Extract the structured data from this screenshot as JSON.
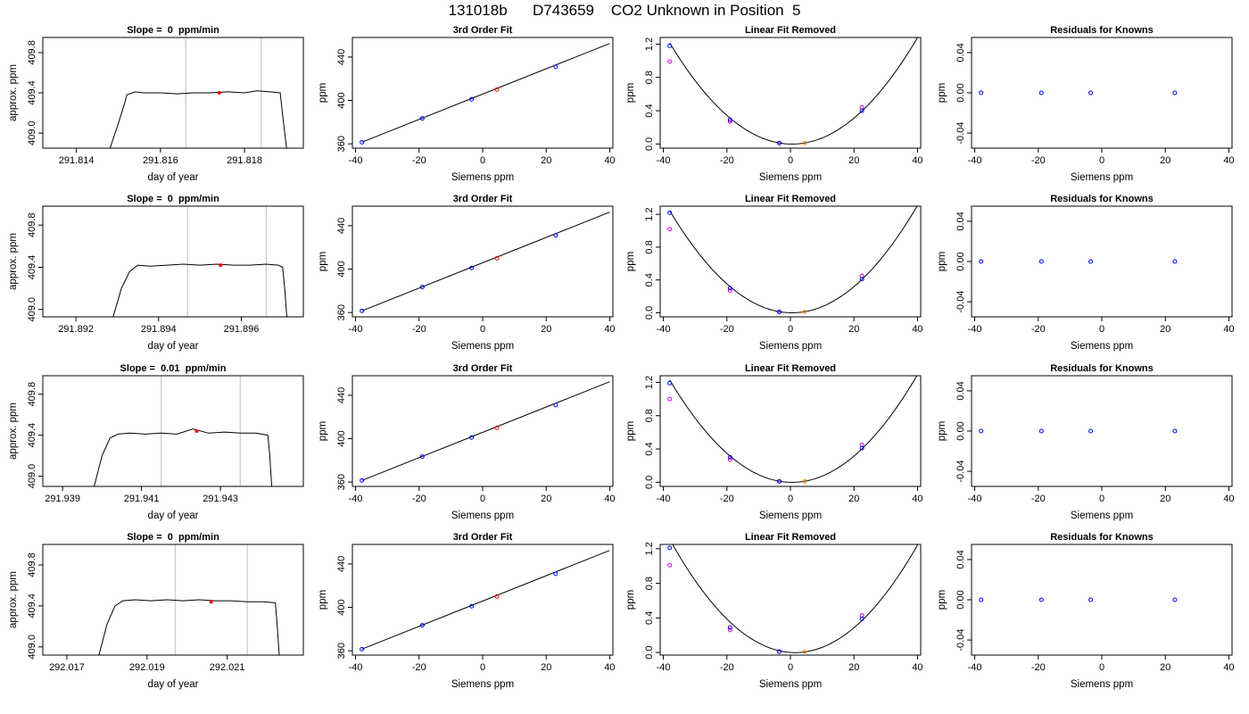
{
  "title": "131018b      D743659    CO2 Unknown in Position  5",
  "colors": {
    "frame": "#000000",
    "curve": "#000000",
    "vline": "#bebebe",
    "known_point": "#0000ff",
    "unknown_point": "#ff0000",
    "unknown_point_lfr": "#ff8c00",
    "poly_known_point": "#cc00ff"
  },
  "chart_data": [
    {
      "panel": "timeseries",
      "row": 1,
      "type": "line",
      "title": "Slope =  0  ppm/min",
      "xlabel": "day of year",
      "ylabel": "approx. ppm",
      "xlim": [
        291.8132,
        291.8194
      ],
      "ylim": [
        408.85,
        409.95
      ],
      "xticks": [
        291.814,
        291.816,
        291.818
      ],
      "xtick_labels": [
        "291.814",
        "291.816",
        "291.818"
      ],
      "yticks": [
        409.0,
        409.4,
        409.8
      ],
      "ytick_labels": [
        "409.0",
        "409.4",
        "409.8"
      ],
      "vlines": [
        291.8166,
        291.8184
      ],
      "series": [
        {
          "x": [
            291.8148,
            291.815,
            291.81515,
            291.8152,
            291.8154,
            291.8156,
            291.816,
            291.8164,
            291.8168,
            291.8172,
            291.8176,
            291.818,
            291.8183,
            291.8186,
            291.81885,
            291.8189,
            291.819
          ],
          "y": [
            408.85,
            409.1,
            409.3,
            409.38,
            409.41,
            409.4,
            409.4,
            409.39,
            409.4,
            409.4,
            409.41,
            409.4,
            409.42,
            409.41,
            409.4,
            409.2,
            408.85
          ]
        }
      ],
      "highlight": {
        "x": 291.8174,
        "y": 409.4
      }
    },
    {
      "panel": "fit",
      "row": 1,
      "type": "line",
      "title": "3rd Order Fit",
      "xlabel": "Siemens ppm",
      "ylabel": "ppm",
      "xlim": [
        -41,
        41
      ],
      "ylim": [
        356,
        458
      ],
      "xticks": [
        -40,
        -20,
        0,
        20,
        40
      ],
      "xtick_labels": [
        "-40",
        "-20",
        "0",
        "20",
        "40"
      ],
      "yticks": [
        360,
        400,
        440
      ],
      "ytick_labels": [
        "360",
        "400",
        "440"
      ],
      "line": {
        "x": [
          -38,
          40
        ],
        "y": [
          361.5,
          452.5
        ]
      },
      "known_points": {
        "x": [
          -38,
          -19,
          -3.5,
          23
        ],
        "y": [
          361.5,
          383.5,
          401,
          431
        ]
      },
      "unknown_point": {
        "x": 4.5,
        "y": 410
      }
    },
    {
      "panel": "linfit",
      "row": 1,
      "type": "scatter",
      "title": "Linear Fit Removed",
      "xlabel": "Siemens ppm",
      "ylabel": "ppm",
      "xlim": [
        -41,
        41
      ],
      "ylim": [
        -0.05,
        1.28
      ],
      "xticks": [
        -40,
        -20,
        0,
        20,
        40
      ],
      "xtick_labels": [
        "-40",
        "-20",
        "0",
        "20",
        "40"
      ],
      "yticks": [
        0,
        0.4,
        0.8,
        1.2
      ],
      "ytick_labels": [
        "0.0",
        "0.4",
        "0.8",
        "1.2"
      ],
      "curve": {
        "a": 0.00082,
        "h": 0.5,
        "k": -0.001,
        "x": [
          -38,
          40
        ]
      },
      "known_points": {
        "x": [
          -38,
          -19,
          -3.5,
          22.5
        ],
        "y": [
          1.18,
          0.29,
          0.01,
          0.4
        ]
      },
      "poly_known_points": {
        "x": [
          -38,
          -19,
          -3.5,
          22.5
        ],
        "y": [
          0.99,
          0.27,
          0.01,
          0.44
        ]
      },
      "unknown_point": {
        "x": 4.5,
        "y": 0.01
      }
    },
    {
      "panel": "resid",
      "row": 1,
      "type": "scatter",
      "title": "Residuals for Knowns",
      "xlabel": "Siemens ppm",
      "ylabel": "ppm",
      "xlim": [
        -41,
        41
      ],
      "ylim": [
        -0.055,
        0.055
      ],
      "xticks": [
        -40,
        -20,
        0,
        20,
        40
      ],
      "xtick_labels": [
        "-40",
        "-20",
        "0",
        "20",
        "40"
      ],
      "yticks": [
        -0.04,
        0,
        0.04
      ],
      "ytick_labels": [
        "-0.04",
        "0.00",
        "0.04"
      ],
      "known_points": {
        "x": [
          -38,
          -19,
          -3.5,
          23
        ],
        "y": [
          0,
          0,
          0,
          0
        ]
      }
    },
    {
      "panel": "timeseries",
      "row": 2,
      "type": "line",
      "title": "Slope =  0  ppm/min",
      "xlabel": "day of year",
      "ylabel": "approx. ppm",
      "xlim": [
        291.8912,
        291.8975
      ],
      "ylim": [
        408.93,
        409.98
      ],
      "xticks": [
        291.892,
        291.894,
        291.896
      ],
      "xtick_labels": [
        "291.892",
        "291.894",
        "291.896"
      ],
      "yticks": [
        409.0,
        409.4,
        409.8
      ],
      "ytick_labels": [
        "409.0",
        "409.4",
        "409.8"
      ],
      "vlines": [
        291.8947,
        291.8966
      ],
      "series": [
        {
          "x": [
            291.8929,
            291.8931,
            291.8933,
            291.8935,
            291.8938,
            291.8942,
            291.8946,
            291.895,
            291.8954,
            291.8958,
            291.8962,
            291.8966,
            291.8969,
            291.897,
            291.89705,
            291.8971
          ],
          "y": [
            408.93,
            409.2,
            409.36,
            409.42,
            409.41,
            409.42,
            409.43,
            409.42,
            409.43,
            409.42,
            409.42,
            409.43,
            409.42,
            409.4,
            409.2,
            408.93
          ]
        }
      ],
      "highlight": {
        "x": 291.8955,
        "y": 409.42
      }
    },
    {
      "panel": "fit",
      "row": 2,
      "type": "line",
      "title": "3rd Order Fit",
      "xlabel": "Siemens ppm",
      "ylabel": "ppm",
      "xlim": [
        -41,
        41
      ],
      "ylim": [
        356,
        458
      ],
      "xticks": [
        -40,
        -20,
        0,
        20,
        40
      ],
      "xtick_labels": [
        "-40",
        "-20",
        "0",
        "20",
        "40"
      ],
      "yticks": [
        360,
        400,
        440
      ],
      "ytick_labels": [
        "360",
        "400",
        "440"
      ],
      "line": {
        "x": [
          -38,
          40
        ],
        "y": [
          361.5,
          452.5
        ]
      },
      "known_points": {
        "x": [
          -38,
          -19,
          -3.5,
          23
        ],
        "y": [
          361.5,
          383.5,
          401,
          431
        ]
      },
      "unknown_point": {
        "x": 4.5,
        "y": 410
      }
    },
    {
      "panel": "linfit",
      "row": 2,
      "type": "scatter",
      "title": "Linear Fit Removed",
      "xlabel": "Siemens ppm",
      "ylabel": "ppm",
      "xlim": [
        -41,
        41
      ],
      "ylim": [
        -0.05,
        1.3
      ],
      "xticks": [
        -40,
        -20,
        0,
        20,
        40
      ],
      "xtick_labels": [
        "-40",
        "-20",
        "0",
        "20",
        "40"
      ],
      "yticks": [
        0,
        0.4,
        0.8,
        1.2
      ],
      "ytick_labels": [
        "0.0",
        "0.4",
        "0.8",
        "1.2"
      ],
      "curve": {
        "a": 0.00084,
        "h": 0.5,
        "k": -0.001,
        "x": [
          -38,
          40
        ]
      },
      "known_points": {
        "x": [
          -38,
          -19,
          -3.5,
          22.5
        ],
        "y": [
          1.22,
          0.3,
          0.01,
          0.41
        ]
      },
      "poly_known_points": {
        "x": [
          -38,
          -19,
          -3.5,
          22.5
        ],
        "y": [
          1.02,
          0.27,
          0.01,
          0.45
        ]
      },
      "unknown_point": {
        "x": 4.5,
        "y": 0.01
      }
    },
    {
      "panel": "resid",
      "row": 2,
      "type": "scatter",
      "title": "Residuals for Knowns",
      "xlabel": "Siemens ppm",
      "ylabel": "ppm",
      "xlim": [
        -41,
        41
      ],
      "ylim": [
        -0.055,
        0.055
      ],
      "xticks": [
        -40,
        -20,
        0,
        20,
        40
      ],
      "xtick_labels": [
        "-40",
        "-20",
        "0",
        "20",
        "40"
      ],
      "yticks": [
        -0.04,
        0,
        0.04
      ],
      "ytick_labels": [
        "-0.04",
        "0.00",
        "0.04"
      ],
      "known_points": {
        "x": [
          -38,
          -19,
          -3.5,
          23
        ],
        "y": [
          0,
          0,
          0,
          0
        ]
      }
    },
    {
      "panel": "timeseries",
      "row": 3,
      "type": "line",
      "title": "Slope =  0.01  ppm/min",
      "xlabel": "day of year",
      "ylabel": "approx. ppm",
      "xlim": [
        291.9385,
        291.9451
      ],
      "ylim": [
        408.9,
        409.98
      ],
      "xticks": [
        291.939,
        291.941,
        291.943
      ],
      "xtick_labels": [
        "291.939",
        "291.941",
        "291.943"
      ],
      "yticks": [
        409.0,
        409.4,
        409.8
      ],
      "ytick_labels": [
        "409.0",
        "409.4",
        "409.8"
      ],
      "vlines": [
        291.9415,
        291.9435
      ],
      "series": [
        {
          "x": [
            291.9398,
            291.94,
            291.9402,
            291.9404,
            291.9407,
            291.9411,
            291.9415,
            291.9419,
            291.9423,
            291.9427,
            291.9431,
            291.9435,
            291.9439,
            291.9442,
            291.94425,
            291.9443
          ],
          "y": [
            408.9,
            409.2,
            409.37,
            409.41,
            409.42,
            409.41,
            409.42,
            409.41,
            409.46,
            409.42,
            409.43,
            409.42,
            409.42,
            409.4,
            409.2,
            408.9
          ]
        }
      ],
      "highlight": {
        "x": 291.9424,
        "y": 409.44
      }
    },
    {
      "panel": "fit",
      "row": 3,
      "type": "line",
      "title": "3rd Order Fit",
      "xlabel": "Siemens ppm",
      "ylabel": "ppm",
      "xlim": [
        -41,
        41
      ],
      "ylim": [
        356,
        458
      ],
      "xticks": [
        -40,
        -20,
        0,
        20,
        40
      ],
      "xtick_labels": [
        "-40",
        "-20",
        "0",
        "20",
        "40"
      ],
      "yticks": [
        360,
        400,
        440
      ],
      "ytick_labels": [
        "360",
        "400",
        "440"
      ],
      "line": {
        "x": [
          -38,
          40
        ],
        "y": [
          361.5,
          452.5
        ]
      },
      "known_points": {
        "x": [
          -38,
          -19,
          -3.5,
          23
        ],
        "y": [
          361.5,
          383.5,
          401,
          431
        ]
      },
      "unknown_point": {
        "x": 4.5,
        "y": 410
      }
    },
    {
      "panel": "linfit",
      "row": 3,
      "type": "scatter",
      "title": "Linear Fit Removed",
      "xlabel": "Siemens ppm",
      "ylabel": "ppm",
      "xlim": [
        -41,
        41
      ],
      "ylim": [
        -0.05,
        1.28
      ],
      "xticks": [
        -40,
        -20,
        0,
        20,
        40
      ],
      "xtick_labels": [
        "-40",
        "-20",
        "0",
        "20",
        "40"
      ],
      "yticks": [
        0,
        0.4,
        0.8,
        1.2
      ],
      "ytick_labels": [
        "0.0",
        "0.4",
        "0.8",
        "1.2"
      ],
      "curve": {
        "a": 0.00083,
        "h": 0.5,
        "k": -0.001,
        "x": [
          -38,
          40
        ]
      },
      "known_points": {
        "x": [
          -38,
          -19,
          -3.5,
          22.5
        ],
        "y": [
          1.19,
          0.3,
          0.01,
          0.41
        ]
      },
      "poly_known_points": {
        "x": [
          -38,
          -19,
          -3.5,
          22.5
        ],
        "y": [
          1.0,
          0.27,
          0.01,
          0.45
        ]
      },
      "unknown_point": {
        "x": 4.5,
        "y": 0.01
      }
    },
    {
      "panel": "resid",
      "row": 3,
      "type": "scatter",
      "title": "Residuals for Knowns",
      "xlabel": "Siemens ppm",
      "ylabel": "ppm",
      "xlim": [
        -41,
        41
      ],
      "ylim": [
        -0.055,
        0.055
      ],
      "xticks": [
        -40,
        -20,
        0,
        20,
        40
      ],
      "xtick_labels": [
        "-40",
        "-20",
        "0",
        "20",
        "40"
      ],
      "yticks": [
        -0.04,
        0,
        0.04
      ],
      "ytick_labels": [
        "-0.04",
        "0.00",
        "0.04"
      ],
      "known_points": {
        "x": [
          -38,
          -19,
          -3.5,
          23
        ],
        "y": [
          0,
          0,
          0,
          0
        ]
      }
    },
    {
      "panel": "timeseries",
      "row": 4,
      "type": "line",
      "title": "Slope =  0  ppm/min",
      "xlabel": "day of year",
      "ylabel": "approx. ppm",
      "xlim": [
        292.0164,
        292.0229
      ],
      "ylim": [
        408.92,
        410.0
      ],
      "xticks": [
        292.017,
        292.019,
        292.021
      ],
      "xtick_labels": [
        "292.017",
        "292.019",
        "292.021"
      ],
      "yticks": [
        409.0,
        409.4,
        409.8
      ],
      "ytick_labels": [
        "409.0",
        "409.4",
        "409.8"
      ],
      "vlines": [
        292.0197,
        292.0215
      ],
      "series": [
        {
          "x": [
            292.0178,
            292.018,
            292.0182,
            292.0184,
            292.0187,
            292.0191,
            292.0195,
            292.0199,
            292.0203,
            292.0207,
            292.0211,
            292.0215,
            292.0219,
            292.0222,
            292.02225,
            292.0223
          ],
          "y": [
            408.92,
            409.22,
            409.4,
            409.45,
            409.46,
            409.45,
            409.46,
            409.45,
            409.46,
            409.45,
            409.45,
            409.44,
            409.44,
            409.43,
            409.2,
            408.92
          ]
        }
      ],
      "highlight": {
        "x": 292.0206,
        "y": 409.44
      }
    },
    {
      "panel": "fit",
      "row": 4,
      "type": "line",
      "title": "3rd Order Fit",
      "xlabel": "Siemens ppm",
      "ylabel": "ppm",
      "xlim": [
        -41,
        41
      ],
      "ylim": [
        356,
        458
      ],
      "xticks": [
        -40,
        -20,
        0,
        20,
        40
      ],
      "xtick_labels": [
        "-40",
        "-20",
        "0",
        "20",
        "40"
      ],
      "yticks": [
        360,
        400,
        440
      ],
      "ytick_labels": [
        "360",
        "400",
        "440"
      ],
      "line": {
        "x": [
          -38,
          40
        ],
        "y": [
          361.5,
          452.5
        ]
      },
      "known_points": {
        "x": [
          -38,
          -19,
          -3.5,
          23
        ],
        "y": [
          361.5,
          383.5,
          401,
          431
        ]
      },
      "unknown_point": {
        "x": 4.5,
        "y": 410
      }
    },
    {
      "panel": "linfit",
      "row": 4,
      "type": "scatter",
      "title": "Linear Fit Removed",
      "xlabel": "Siemens ppm",
      "ylabel": "ppm",
      "xlim": [
        -41,
        41
      ],
      "ylim": [
        -0.03,
        1.25
      ],
      "xticks": [
        -40,
        -20,
        0,
        20,
        40
      ],
      "xtick_labels": [
        "-40",
        "-20",
        "0",
        "20",
        "40"
      ],
      "yticks": [
        0,
        0.4,
        0.8,
        1.2
      ],
      "ytick_labels": [
        "0.0",
        "0.4",
        "0.8",
        "1.2"
      ],
      "curve": {
        "a": 0.00084,
        "h": 1.5,
        "k": -0.001,
        "x": [
          -38,
          40
        ]
      },
      "known_points": {
        "x": [
          -38,
          -19,
          -3.5,
          22.5
        ],
        "y": [
          1.21,
          0.29,
          0.01,
          0.39
        ]
      },
      "poly_known_points": {
        "x": [
          -38,
          -19,
          -3.5,
          22.5
        ],
        "y": [
          1.01,
          0.26,
          0.01,
          0.43
        ]
      },
      "unknown_point": {
        "x": 4.5,
        "y": 0.01
      }
    },
    {
      "panel": "resid",
      "row": 4,
      "type": "scatter",
      "title": "Residuals for Knowns",
      "xlabel": "Siemens ppm",
      "ylabel": "ppm",
      "xlim": [
        -41,
        41
      ],
      "ylim": [
        -0.055,
        0.055
      ],
      "xticks": [
        -40,
        -20,
        0,
        20,
        40
      ],
      "xtick_labels": [
        "-40",
        "-20",
        "0",
        "20",
        "40"
      ],
      "yticks": [
        -0.04,
        0,
        0.04
      ],
      "ytick_labels": [
        "-0.04",
        "0.00",
        "0.04"
      ],
      "known_points": {
        "x": [
          -38,
          -19,
          -3.5,
          23
        ],
        "y": [
          0,
          0,
          0,
          0
        ]
      }
    }
  ]
}
